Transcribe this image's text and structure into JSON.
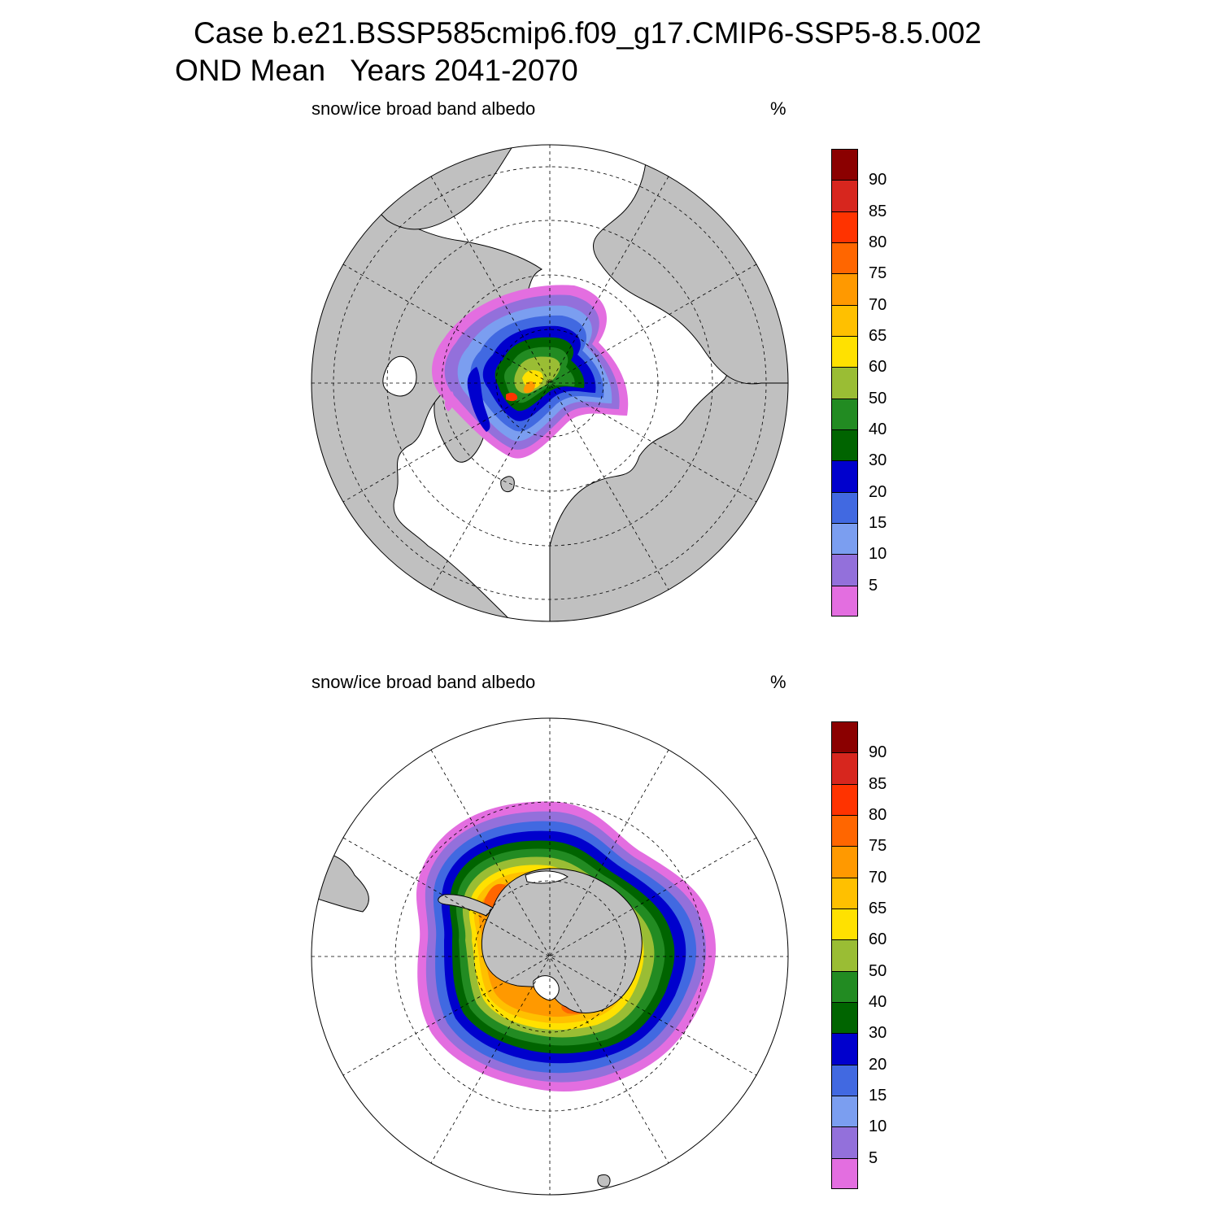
{
  "title": {
    "line1": "Case b.e21.BSSP585cmip6.f09_g17.CMIP6-SSP5-8.5.002",
    "line2": "OND Mean   Years 2041-2070"
  },
  "panels": [
    {
      "id": "north",
      "variable": "snow/ice broad band albedo",
      "units": "%"
    },
    {
      "id": "south",
      "variable": "snow/ice broad band albedo",
      "units": "%"
    }
  ],
  "colorbar": {
    "labels": [
      "90",
      "85",
      "80",
      "75",
      "70",
      "65",
      "60",
      "50",
      "40",
      "30",
      "20",
      "15",
      "10",
      "5"
    ],
    "colors_top_to_bottom": [
      "#8b0000",
      "#d7261e",
      "#ff3300",
      "#ff6600",
      "#ff9900",
      "#ffc000",
      "#ffe100",
      "#9abd34",
      "#228b22",
      "#006400",
      "#0000cd",
      "#4169e1",
      "#7b9ef0",
      "#9370db",
      "#e36ee0"
    ]
  },
  "map_colors": {
    "land": "#c0c0c0",
    "ocean": "#ffffff"
  }
}
